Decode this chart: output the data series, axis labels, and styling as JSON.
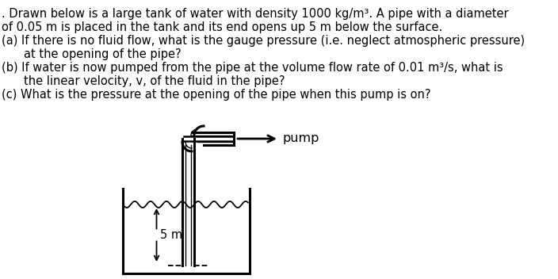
{
  "background_color": "#ffffff",
  "text_color": "#000000",
  "title_lines": [
    ". Drawn below is a large tank of water with density 1000 kg/m³. A pipe with a diameter",
    "of 0.05 m is placed in the tank and its end opens up 5 m below the surface."
  ],
  "question_a_lines": [
    "(a) If there is no fluid flow, what is the gauge pressure (i.e. neglect atmospheric pressure)",
    "     at the opening of the pipe?"
  ],
  "question_b_lines": [
    "(b) If water is now pumped from the pipe at the volume flow rate of 0.01 m³/s, what is",
    "     the linear velocity, v, of the fluid in the pipe?"
  ],
  "question_c_lines": [
    "(c) What is the pressure at the opening of the pipe when this pump is on?"
  ],
  "pump_label": "pump",
  "depth_label": "5 m",
  "font_size": 10.5
}
